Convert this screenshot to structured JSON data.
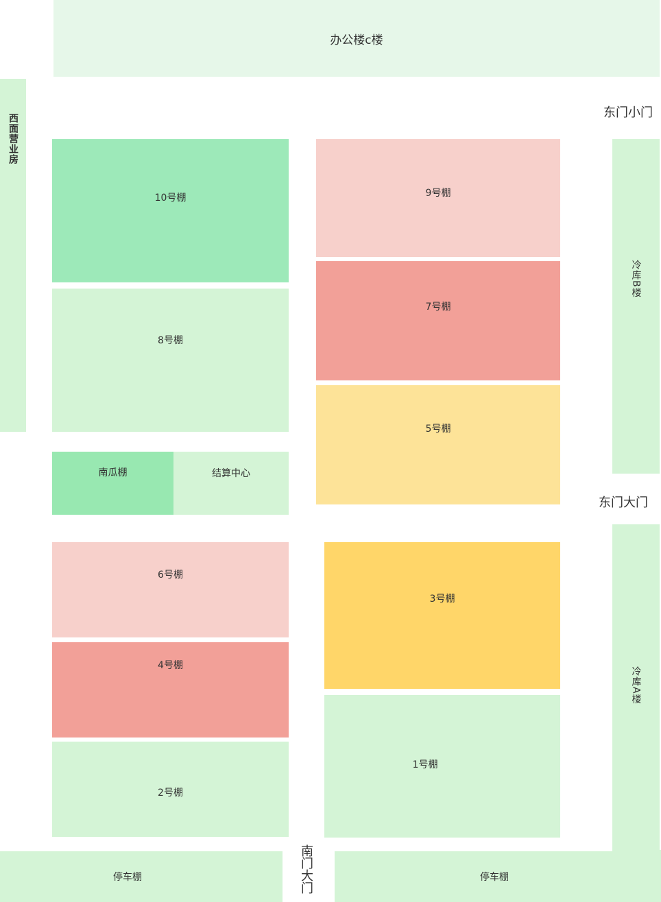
{
  "buildings": {
    "office_c": "办公楼c楼",
    "west_shop": "西面营业房",
    "cold_b": "冷库B楼",
    "cold_a": "冷库A楼",
    "parking_left": "停车棚",
    "parking_right": "停车棚"
  },
  "sheds": {
    "s10": "10号棚",
    "s8": "8号棚",
    "pumpkin": "南瓜棚",
    "settlement": "结算中心",
    "s6": "6号棚",
    "s4": "4号棚",
    "s2": "2号棚",
    "s9": "9号棚",
    "s7": "7号棚",
    "s5": "5号棚",
    "s3": "3号棚",
    "s1": "1号棚"
  },
  "gates": {
    "east_small": "东门小门",
    "east_main": "东门大门",
    "south": "南门大门"
  },
  "colors": {
    "light_green": "#d4f4d6",
    "pale_green": "#e6f7e9",
    "green": "#9de9b9",
    "green_pumpkin": "#98e8b1",
    "pink": "#f7d0cb",
    "salmon": "#f2a098",
    "light_yellow": "#fde398",
    "yellow": "#ffd669"
  }
}
